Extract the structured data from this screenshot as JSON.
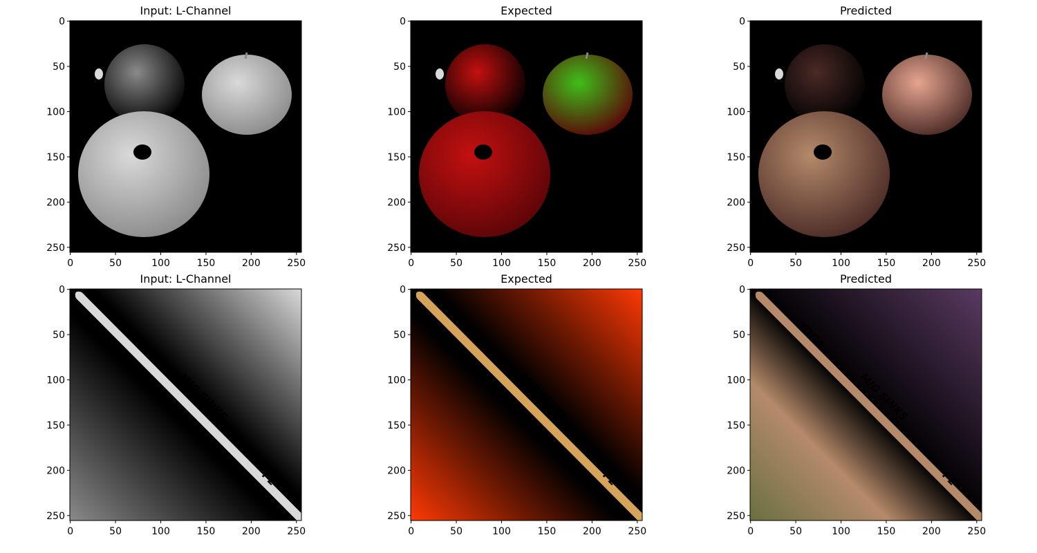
{
  "figure": {
    "panels": [
      {
        "title": "Input: L-Channel",
        "scene": "apples",
        "palette": "gray"
      },
      {
        "title": "Expected",
        "scene": "apples",
        "palette": "apples_color"
      },
      {
        "title": "Predicted",
        "scene": "apples",
        "palette": "apples_pred"
      },
      {
        "title": "Input: L-Channel",
        "scene": "drumstick",
        "palette": "gray"
      },
      {
        "title": "Expected",
        "scene": "drumstick",
        "palette": "drum_color"
      },
      {
        "title": "Predicted",
        "scene": "drumstick",
        "palette": "drum_pred"
      }
    ],
    "x_ticks": [
      "0",
      "50",
      "100",
      "150",
      "200",
      "250"
    ],
    "y_ticks": [
      "0",
      "50",
      "100",
      "150",
      "200",
      "250"
    ],
    "image_size": 256
  },
  "colors": {
    "background": "#ffffff",
    "axes_frame": "#000000",
    "image_background": "#000000",
    "gray_light": "#d9d9d9",
    "gray_mid": "#8a8a8a",
    "apple_red": "#c41010",
    "apple_green": "#3fbf1a",
    "apple_dark_red": "#5a0508",
    "pred_tan": "#b58a6a",
    "pred_pink": "#e6a590",
    "pred_brown": "#4a2a26",
    "drum_bg_red": "#ff3a06",
    "drum_stick_tan": "#d6a35a",
    "pred_bg_green": "#6a7040",
    "pred_bg_purple": "#5a3a62",
    "stick_text_ink": "#111111"
  },
  "drumstick_writing": [
    "YOGA",
    "MIG SINKS",
    "P2"
  ]
}
